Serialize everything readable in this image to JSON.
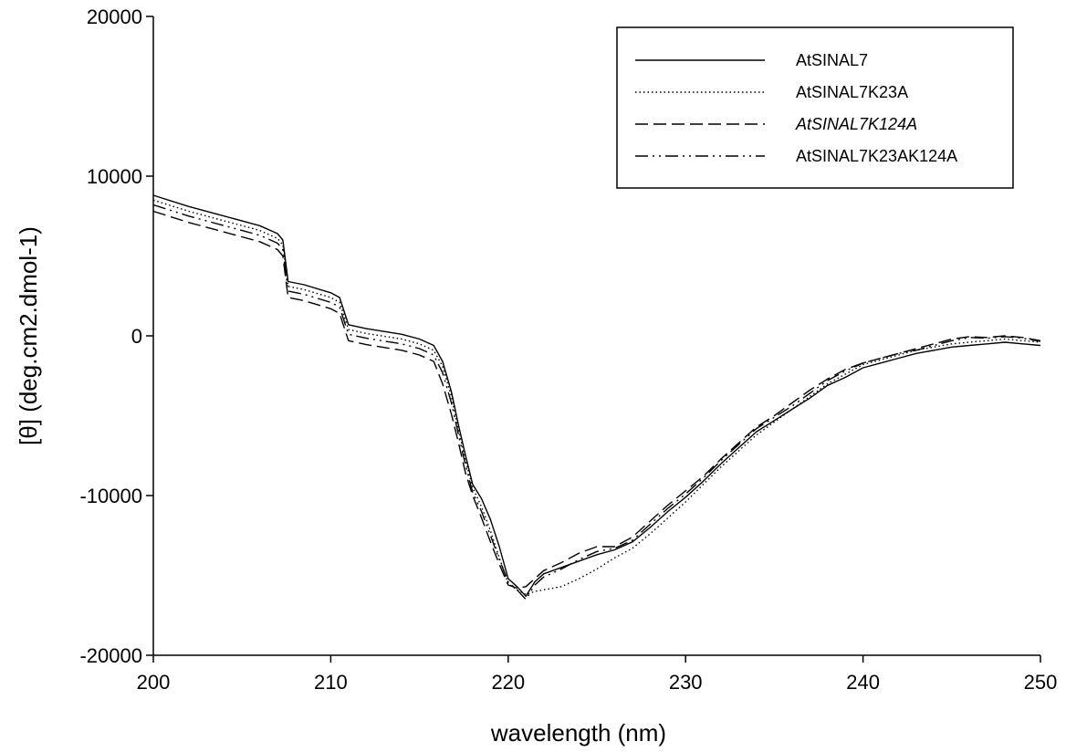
{
  "chart_data": {
    "type": "line",
    "title": "",
    "xlabel": "wavelength (nm)",
    "ylabel": "[θ] (deg.cm2.dmol-1)",
    "xlim": [
      200,
      250
    ],
    "ylim": [
      -20000,
      20000
    ],
    "xticks": [
      200,
      210,
      220,
      230,
      240,
      250
    ],
    "yticks": [
      -20000,
      -10000,
      0,
      10000,
      20000
    ],
    "xtick_labels": [
      "200",
      "210",
      "220",
      "230",
      "240",
      "250"
    ],
    "ytick_labels": [
      "-20000",
      "-10000",
      "0",
      "10000",
      "20000"
    ],
    "grid": false,
    "legend_position": "top-right",
    "x": [
      200,
      202,
      204,
      206,
      207,
      207.3,
      207.6,
      208.5,
      210,
      210.5,
      211,
      212,
      214,
      215,
      215.8,
      216.3,
      216.8,
      217.2,
      217.6,
      218,
      218.5,
      219,
      219.5,
      220,
      220.5,
      221,
      221.5,
      222,
      223,
      224,
      225,
      226,
      227,
      228,
      229,
      230,
      231,
      232,
      233,
      234,
      235,
      236,
      237,
      238,
      239,
      240,
      241,
      242,
      243,
      244,
      245,
      246,
      247,
      248,
      249,
      250
    ],
    "series": [
      {
        "name": "AtSINAL7",
        "dash": "solid",
        "values": [
          8800,
          8100,
          7500,
          6900,
          6400,
          6000,
          3400,
          3200,
          2700,
          2400,
          700,
          450,
          100,
          -200,
          -600,
          -1600,
          -3500,
          -5600,
          -7500,
          -9300,
          -10200,
          -11500,
          -13200,
          -15200,
          -15700,
          -16300,
          -15400,
          -14900,
          -14500,
          -14100,
          -13700,
          -13400,
          -12900,
          -12000,
          -11000,
          -10100,
          -9100,
          -8000,
          -7000,
          -6000,
          -5300,
          -4600,
          -3900,
          -3100,
          -2600,
          -2000,
          -1700,
          -1400,
          -1100,
          -900,
          -700,
          -600,
          -500,
          -400,
          -500,
          -600
        ]
      },
      {
        "name": "AtSINAL7K23A",
        "dash": "dotted",
        "values": [
          8500,
          7800,
          7200,
          6600,
          6100,
          5700,
          3100,
          2900,
          2400,
          2100,
          400,
          150,
          -200,
          -500,
          -900,
          -1900,
          -3800,
          -5900,
          -7800,
          -9500,
          -10700,
          -12200,
          -13900,
          -15500,
          -15900,
          -16200,
          -16000,
          -15900,
          -15700,
          -15200,
          -14600,
          -13900,
          -13300,
          -12400,
          -11400,
          -10400,
          -9300,
          -8200,
          -7200,
          -6200,
          -5400,
          -4600,
          -3800,
          -3000,
          -2400,
          -1800,
          -1500,
          -1200,
          -900,
          -700,
          -500,
          -400,
          -300,
          -200,
          -300,
          -400
        ]
      },
      {
        "name": "AtSINAL7K124A",
        "dash": "dashed",
        "values": [
          7800,
          7100,
          6500,
          5900,
          5400,
          5000,
          2400,
          2200,
          1700,
          1400,
          -300,
          -550,
          -900,
          -1200,
          -1600,
          -3000,
          -4900,
          -6700,
          -8600,
          -10000,
          -11400,
          -12900,
          -14300,
          -15600,
          -15800,
          -15700,
          -15200,
          -14700,
          -14200,
          -13600,
          -13200,
          -13200,
          -12600,
          -11600,
          -10600,
          -9700,
          -8800,
          -7700,
          -6700,
          -5700,
          -5000,
          -4200,
          -3400,
          -2700,
          -2100,
          -1700,
          -1400,
          -1100,
          -800,
          -500,
          -200,
          -50,
          -100,
          0,
          -100,
          -300
        ]
      },
      {
        "name": "AtSINAL7K23AK124A",
        "dash": "dash-dot",
        "values": [
          8200,
          7500,
          6900,
          6300,
          5800,
          5400,
          2800,
          2600,
          2100,
          1800,
          100,
          -150,
          -500,
          -800,
          -1200,
          -2300,
          -4200,
          -6200,
          -8100,
          -9800,
          -11000,
          -12500,
          -14000,
          -15400,
          -15900,
          -16500,
          -15600,
          -15100,
          -14600,
          -14000,
          -13500,
          -13300,
          -12800,
          -11800,
          -10800,
          -9900,
          -8900,
          -7800,
          -6800,
          -5800,
          -5100,
          -4400,
          -3600,
          -2800,
          -2200,
          -1700,
          -1400,
          -1100,
          -900,
          -600,
          -300,
          -100,
          -150,
          -50,
          -150,
          -350
        ]
      }
    ]
  }
}
